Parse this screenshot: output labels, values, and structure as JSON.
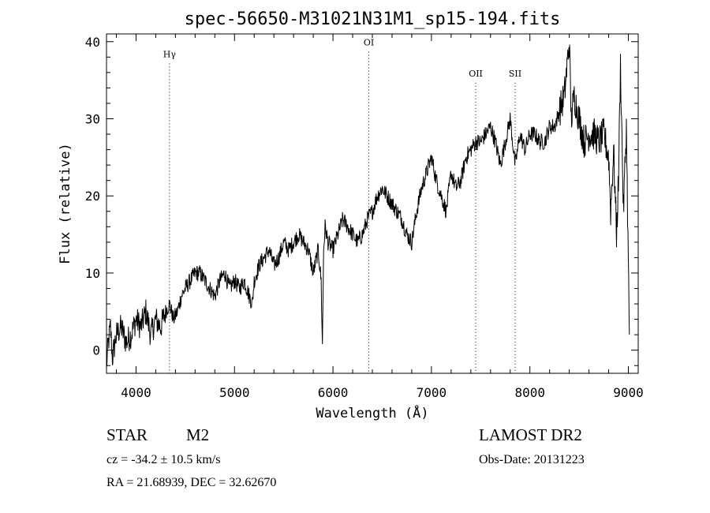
{
  "chart_data": {
    "type": "line",
    "title": "spec-56650-M31021N31M1_sp15-194.fits",
    "xlabel": "Wavelength (Å)",
    "ylabel": "Flux (relative)",
    "xlim": [
      3700,
      9100
    ],
    "ylim": [
      -3,
      41
    ],
    "xticks": [
      4000,
      5000,
      6000,
      7000,
      8000,
      9000
    ],
    "yticks": [
      0,
      10,
      20,
      30,
      40
    ],
    "lines": [
      {
        "label": "Hγ",
        "wavelength": 4340,
        "label_flux": 38
      },
      {
        "label": "OI",
        "wavelength": 6364,
        "label_flux": 39.5
      },
      {
        "label": "OII",
        "wavelength": 7450,
        "label_flux": 35.5
      },
      {
        "label": "SII",
        "wavelength": 7850,
        "label_flux": 35.5
      }
    ],
    "series": [
      {
        "x": [
          3700,
          3720,
          3740,
          3760,
          3800,
          3850,
          3900,
          3950,
          4000,
          4050,
          4100,
          4150,
          4200,
          4250,
          4300,
          4340,
          4380,
          4420,
          4460,
          4500,
          4550,
          4600,
          4650,
          4700,
          4750,
          4800,
          4850,
          4900,
          4950,
          5000,
          5050,
          5100,
          5150,
          5180,
          5200,
          5250,
          5300,
          5350,
          5400,
          5450,
          5500,
          5550,
          5600,
          5650,
          5700,
          5750,
          5800,
          5850,
          5880,
          5893,
          5905,
          5920,
          5950,
          6000,
          6050,
          6100,
          6150,
          6200,
          6250,
          6300,
          6350,
          6400,
          6450,
          6500,
          6550,
          6600,
          6650,
          6700,
          6750,
          6800,
          6850,
          6900,
          6950,
          7000,
          7050,
          7100,
          7150,
          7200,
          7250,
          7300,
          7350,
          7400,
          7450,
          7500,
          7550,
          7600,
          7650,
          7700,
          7750,
          7800,
          7850,
          7900,
          7950,
          8000,
          8050,
          8100,
          8150,
          8200,
          8250,
          8300,
          8350,
          8400,
          8420,
          8450,
          8500,
          8550,
          8600,
          8650,
          8700,
          8750,
          8800,
          8820,
          8850,
          8880,
          8900,
          8920,
          8950,
          8980,
          9000,
          9010
        ],
        "y": [
          -2,
          1,
          3,
          -1,
          2,
          3,
          1,
          2,
          4,
          3,
          5,
          2,
          4,
          3,
          5,
          6,
          4,
          5,
          7,
          8,
          9,
          10,
          10,
          9,
          8,
          7,
          9,
          10,
          8,
          9,
          8,
          9,
          7,
          6,
          9,
          11,
          12,
          13,
          11,
          12,
          14,
          13,
          14,
          15,
          14,
          13,
          10,
          13,
          9,
          0.5,
          13,
          16,
          14,
          13,
          15,
          17,
          16,
          15,
          14,
          15,
          17,
          18,
          20,
          21,
          20,
          19,
          18,
          17,
          15,
          14,
          18,
          21,
          23,
          25,
          22,
          20,
          18,
          23,
          21,
          22,
          25,
          26,
          27,
          27,
          28,
          29,
          27,
          24,
          27,
          30,
          24,
          28,
          26,
          28,
          28,
          27,
          27,
          29,
          29,
          31,
          33,
          40,
          30,
          33,
          30,
          27,
          28,
          28,
          27,
          28,
          25,
          18,
          26,
          15,
          22,
          37,
          18,
          29,
          11,
          2
        ]
      }
    ]
  },
  "info": {
    "object_label": "STAR",
    "subclass": "M2",
    "survey": "LAMOST DR2",
    "cz_line": "cz = -34.2 ± 10.5 km/s",
    "obs_date_line": "Obs-Date: 20131223",
    "radec_line": "RA =  21.68939, DEC =  32.62670"
  }
}
